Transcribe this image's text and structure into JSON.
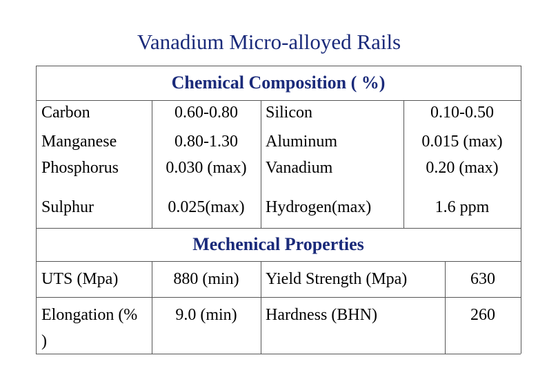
{
  "title": "Vanadium Micro-alloyed Rails",
  "chemical": {
    "header": "Chemical Composition   ( %)",
    "rows": [
      [
        "Carbon",
        "0.60-0.80",
        "Silicon",
        "0.10-0.50"
      ],
      [
        "Manganese",
        "0.80-1.30",
        "Aluminum",
        "0.015 (max)"
      ],
      [
        "Phosphorus",
        "0.030 (max)",
        "Vanadium",
        "0.20 (max)"
      ],
      [
        "Sulphur",
        "0.025(max)",
        "Hydrogen(max)",
        "1.6 ppm"
      ]
    ]
  },
  "mechanical": {
    "header": "Mechenical  Properties",
    "rows": [
      [
        "UTS (Mpa)",
        "880 (min)",
        "Yield Strength (Mpa)",
        "630"
      ],
      [
        "Elongation (% )",
        "9.0 (min)",
        "Hardness (BHN)",
        "260"
      ]
    ]
  }
}
